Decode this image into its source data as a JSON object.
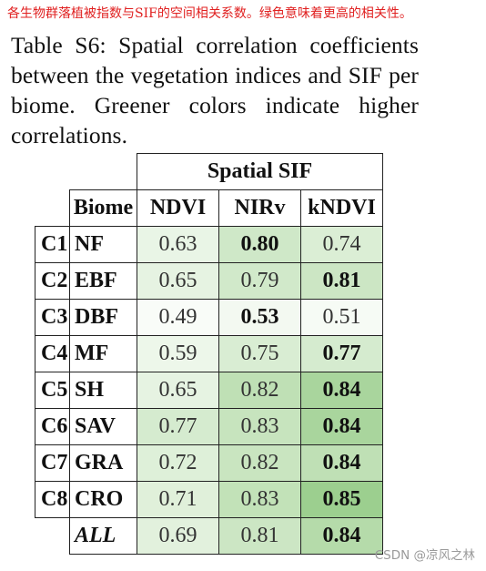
{
  "annotation": "各生物群落植被指数与SIF的空间相关系数。绿色意味着更高的相关性。",
  "caption": "Table S6: Spatial correlation coefficients between the vegetation indices and SIF per biome. Greener colors indicate higher correlations.",
  "table": {
    "group_header": "Spatial SIF",
    "col_biome": "Biome",
    "columns": [
      "NDVI",
      "NIRv",
      "kNDVI"
    ],
    "rows": [
      {
        "code": "C1",
        "biome": "NF",
        "values": [
          "0.63",
          "0.80",
          "0.74"
        ],
        "best": 1,
        "colors": [
          "#e9f5e6",
          "#cfe8c8",
          "#dbeed5"
        ]
      },
      {
        "code": "C2",
        "biome": "EBF",
        "values": [
          "0.65",
          "0.79",
          "0.81"
        ],
        "best": 2,
        "colors": [
          "#e6f3e2",
          "#d1e9ca",
          "#cce6c4"
        ]
      },
      {
        "code": "C3",
        "biome": "DBF",
        "values": [
          "0.49",
          "0.53",
          "0.51"
        ],
        "best": 1,
        "colors": [
          "#f9fcf8",
          "#f3f9f1",
          "#f6fbf5"
        ]
      },
      {
        "code": "C4",
        "biome": "MF",
        "values": [
          "0.59",
          "0.75",
          "0.77"
        ],
        "best": 2,
        "colors": [
          "#edf7ea",
          "#d9edd3",
          "#d5ebcf"
        ]
      },
      {
        "code": "C5",
        "biome": "SH",
        "values": [
          "0.65",
          "0.82",
          "0.84"
        ],
        "best": 2,
        "colors": [
          "#e6f3e2",
          "#bfe0b5",
          "#a9d59d"
        ]
      },
      {
        "code": "C6",
        "biome": "SAV",
        "values": [
          "0.77",
          "0.83",
          "0.84"
        ],
        "best": 2,
        "colors": [
          "#d5ebcf",
          "#c7e4be",
          "#a9d59d"
        ]
      },
      {
        "code": "C7",
        "biome": "GRA",
        "values": [
          "0.72",
          "0.82",
          "0.84"
        ],
        "best": 2,
        "colors": [
          "#def0d9",
          "#c9e5c0",
          "#bfe0b5"
        ]
      },
      {
        "code": "C8",
        "biome": "CRO",
        "values": [
          "0.71",
          "0.83",
          "0.85"
        ],
        "best": 2,
        "colors": [
          "#e0f0da",
          "#c2e2b8",
          "#9ccf8f"
        ]
      },
      {
        "code": "",
        "biome": "ALL",
        "values": [
          "0.69",
          "0.81",
          "0.84"
        ],
        "best": 2,
        "colors": [
          "#e2f1dd",
          "#cce6c4",
          "#b5dbaa"
        ],
        "italic": true
      }
    ]
  },
  "watermark": "CSDN @凉风之林"
}
